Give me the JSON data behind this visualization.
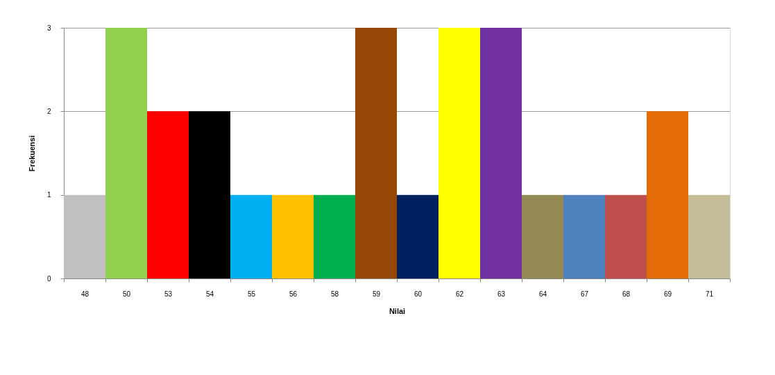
{
  "chart_data": {
    "type": "bar",
    "xlabel": "Nilai",
    "ylabel": "Frekuensi",
    "categories": [
      "48",
      "50",
      "53",
      "54",
      "55",
      "56",
      "58",
      "59",
      "60",
      "62",
      "63",
      "64",
      "67",
      "68",
      "69",
      "71"
    ],
    "values": [
      1,
      3,
      2,
      2,
      1,
      1,
      1,
      3,
      1,
      3,
      3,
      1,
      1,
      1,
      2,
      1
    ],
    "colors": [
      "#c0c0c0",
      "#92d050",
      "#ff0000",
      "#000000",
      "#00b0f0",
      "#ffc000",
      "#00b050",
      "#974706",
      "#002060",
      "#ffff00",
      "#7030a0",
      "#948a54",
      "#4f81bd",
      "#c0504d",
      "#e36c09",
      "#c4bd97"
    ],
    "ylim": [
      0,
      3
    ],
    "yticks": [
      0,
      1,
      2,
      3
    ],
    "grid": "y",
    "legend": false
  }
}
